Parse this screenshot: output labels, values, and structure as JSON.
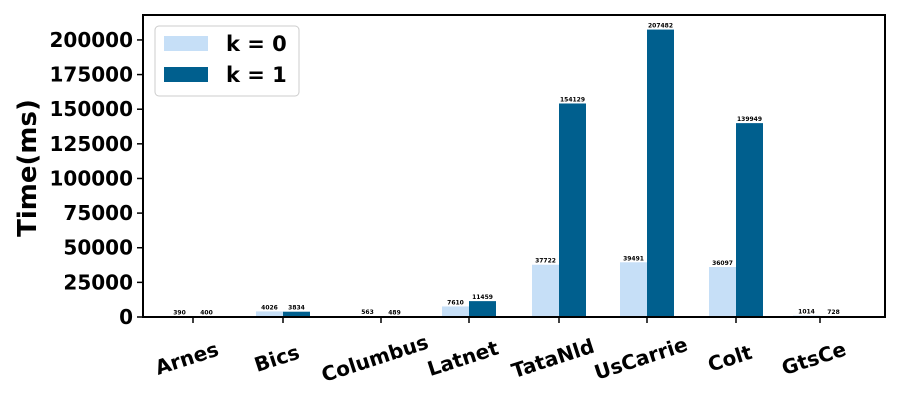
{
  "chart_data": {
    "type": "bar",
    "categories": [
      "Arnes",
      "Bics",
      "Columbus",
      "Latnet",
      "TataNld",
      "UsCarrie",
      "Colt",
      "GtsCe"
    ],
    "series": [
      {
        "name": "k = 0",
        "color": "#c6dff7",
        "values": [
          390,
          4026,
          563,
          7610,
          37722,
          39491,
          36097,
          1014
        ],
        "labels": [
          "390",
          "4026",
          "563",
          "7610",
          "37722",
          "39491",
          "36097",
          "1014"
        ]
      },
      {
        "name": "k = 1",
        "color": "#005f8e",
        "values": [
          400,
          3834,
          489,
          11459,
          154129,
          207482,
          139949,
          728
        ],
        "labels": [
          "400",
          "3834",
          "489",
          "11459",
          "154129",
          "207482",
          "139949",
          "728"
        ]
      }
    ],
    "ylabel": "Time(ms)",
    "xlabel": "",
    "title": "",
    "ylim": [
      0,
      218000
    ],
    "yticks": [
      0,
      25000,
      50000,
      75000,
      100000,
      125000,
      150000,
      175000,
      200000
    ],
    "ytick_labels": [
      "0",
      "25000",
      "50000",
      "75000",
      "100000",
      "125000",
      "150000",
      "175000",
      "200000"
    ],
    "legend_position": "top-left",
    "grid": false
  }
}
